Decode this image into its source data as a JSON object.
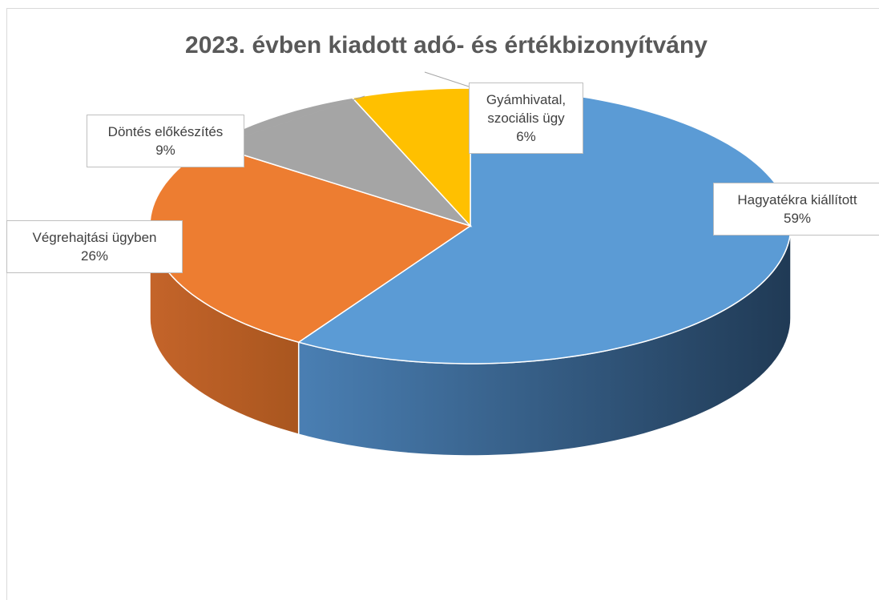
{
  "chart_data": {
    "type": "pie",
    "title": "2023. évben kiadott adó- és értékbizonyítvány",
    "categories": [
      "Hagyatékra kiállított",
      "Végrehajtási ügyben",
      "Döntés előkészítés",
      "Gyámhivatal, szociális ügy"
    ],
    "values": [
      59,
      26,
      9,
      6
    ],
    "value_labels": [
      "59%",
      "26%",
      "9%",
      "6%"
    ],
    "colors": [
      "#5b9bd5",
      "#ed7d31",
      "#a5a5a5",
      "#ffc000"
    ]
  }
}
